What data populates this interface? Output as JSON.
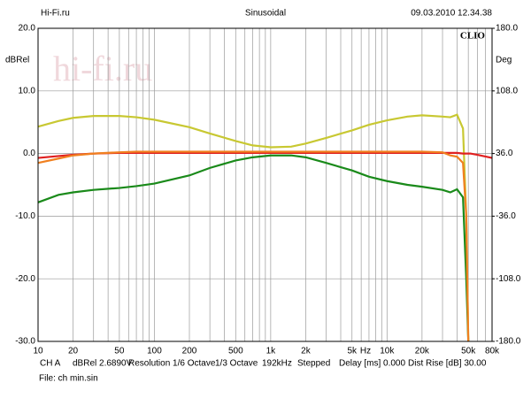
{
  "chart_data": {
    "type": "line",
    "header_left": "Hi-Fi.ru",
    "title": "Sinusoidal",
    "header_right": "09.03.2010 12.34.38",
    "brand": "CLIO",
    "watermark": "hi-fi.ru",
    "ylabel": "dBRel",
    "y2label": "Deg",
    "xlabel": "Hz",
    "footer": [
      "CH A",
      "dBRel 2.6890V",
      "Resolution 1/6 Octave",
      "1/3 Octave",
      "192kHz",
      "Stepped",
      "Delay [ms] 0.000",
      "Dist Rise [dB] 30.00"
    ],
    "file": "File: ch min.sin",
    "xscale": "log",
    "grid": true,
    "xlim": [
      10,
      80000
    ],
    "xticks": [
      10,
      20,
      50,
      100,
      200,
      500,
      {
        "value": 1000,
        "label": "1k"
      },
      {
        "value": 2000,
        "label": "2k"
      },
      {
        "value": 5000,
        "label": "5k"
      },
      {
        "value": 10000,
        "label": "10k"
      },
      {
        "value": 20000,
        "label": "20k"
      },
      {
        "value": 50000,
        "label": "50k"
      },
      {
        "value": 80000,
        "label": "80k"
      }
    ],
    "xgrid": [
      30,
      40,
      60,
      70,
      80,
      90,
      300,
      400,
      600,
      700,
      800,
      900,
      3000,
      4000,
      6000,
      7000,
      8000,
      9000,
      30000,
      40000,
      60000,
      70000
    ],
    "ylim": [
      -30,
      20
    ],
    "yticks": [
      {
        "value": -30,
        "label": "-30.0"
      },
      {
        "value": -20,
        "label": "-20.0"
      },
      {
        "value": -10,
        "label": "-10.0"
      },
      {
        "value": 0,
        "label": "0.0"
      },
      {
        "value": 10,
        "label": "10.0"
      },
      {
        "value": 20,
        "label": "20.0"
      }
    ],
    "y2lim": [
      -180,
      180
    ],
    "y2ticks": [
      {
        "value": -180,
        "label": "-180.0"
      },
      {
        "value": -108,
        "label": "-108.0"
      },
      {
        "value": -36,
        "label": "-36.0"
      },
      {
        "value": 36,
        "label": "36.0"
      },
      {
        "value": 108,
        "label": "108.0"
      },
      {
        "value": 180,
        "label": "180.0"
      }
    ],
    "x": [
      10,
      15,
      20,
      30,
      50,
      70,
      100,
      200,
      300,
      500,
      700,
      1000,
      1500,
      2000,
      3000,
      5000,
      7000,
      10000,
      15000,
      20000,
      30000,
      35000,
      40000,
      45000,
      48000,
      50000,
      52000,
      60000,
      80000
    ],
    "series": [
      {
        "color": "#c8c832",
        "values": [
          4.3,
          5.2,
          5.7,
          6,
          6,
          5.8,
          5.4,
          4.2,
          3.2,
          2,
          1.3,
          1,
          1.1,
          1.6,
          2.5,
          3.7,
          4.6,
          5.3,
          5.9,
          6.1,
          5.9,
          5.8,
          6.2,
          4,
          -10,
          -30,
          null,
          null,
          null
        ]
      },
      {
        "color": "#1a8a1a",
        "values": [
          -7.8,
          -6.6,
          -6.2,
          -5.8,
          -5.5,
          -5.2,
          -4.8,
          -3.5,
          -2.3,
          -1.1,
          -0.6,
          -0.3,
          -0.3,
          -0.6,
          -1.5,
          -2.7,
          -3.7,
          -4.4,
          -5,
          -5.3,
          -5.8,
          -6.2,
          -5.7,
          -7,
          -20,
          -30,
          null,
          null,
          null
        ]
      },
      {
        "color": "#e02020",
        "values": [
          -0.7,
          -0.4,
          -0.2,
          0,
          0.1,
          0.1,
          0.1,
          0.1,
          0.1,
          0.1,
          0.1,
          0.1,
          0.1,
          0.1,
          0.1,
          0.1,
          0.1,
          0.1,
          0.1,
          0.1,
          0.1,
          0.1,
          0.1,
          0,
          0,
          0,
          0,
          -0.2,
          -0.7
        ]
      },
      {
        "color": "#f08020",
        "values": [
          -1.5,
          -0.8,
          -0.3,
          0,
          0.2,
          0.3,
          0.3,
          0.3,
          0.3,
          0.3,
          0.3,
          0.3,
          0.3,
          0.3,
          0.3,
          0.3,
          0.3,
          0.3,
          0.3,
          0.3,
          0.2,
          -0.3,
          -0.5,
          -1.5,
          -10,
          -30,
          null,
          null,
          null
        ]
      }
    ]
  }
}
